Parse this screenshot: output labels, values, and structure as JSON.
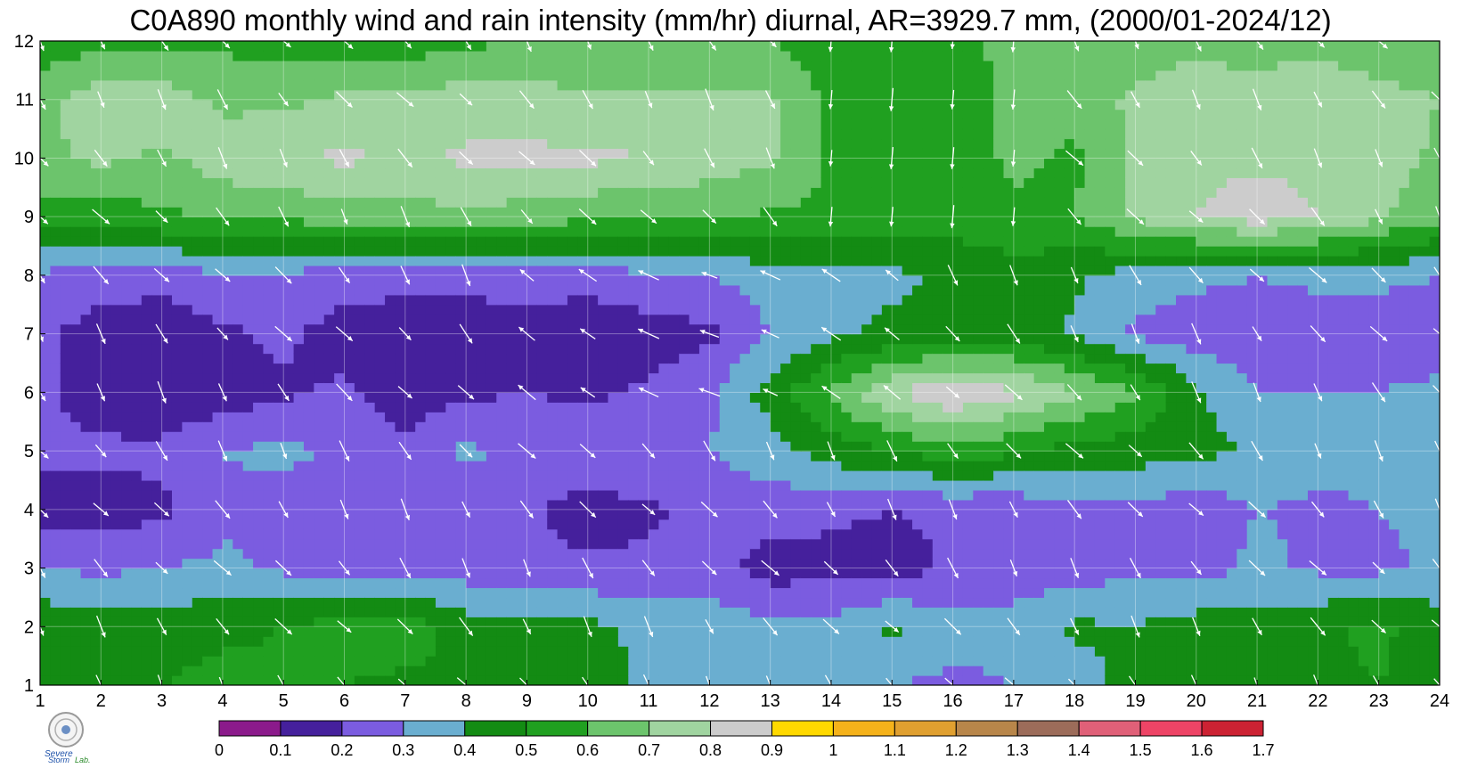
{
  "title": "C0A890 monthly wind and rain intensity (mm/hr) diurnal, AR=3929.7 mm, (2000/01-2024/12)",
  "logo": {
    "text": "Severe Storm Lab.",
    "icon": "severe-storm-lab-seal"
  },
  "chart_data": {
    "type": "contour",
    "title": "C0A890 monthly wind and rain intensity (mm/hr) diurnal, AR=3929.7 mm, (2000/01-2024/12)",
    "xlabel": "",
    "ylabel": "",
    "x_ticks": [
      1,
      2,
      3,
      4,
      5,
      6,
      7,
      8,
      9,
      10,
      11,
      12,
      13,
      14,
      15,
      16,
      17,
      18,
      19,
      20,
      21,
      22,
      23,
      24
    ],
    "y_ticks": [
      1,
      2,
      3,
      4,
      5,
      6,
      7,
      8,
      9,
      10,
      11,
      12
    ],
    "xlim": [
      1,
      24
    ],
    "ylim": [
      1,
      12
    ],
    "grid": true,
    "colorbar": {
      "labels": [
        "0",
        "0.1",
        "0.2",
        "0.3",
        "0.4",
        "0.5",
        "0.6",
        "0.7",
        "0.8",
        "0.9",
        "1",
        "1.1",
        "1.2",
        "1.3",
        "1.4",
        "1.5",
        "1.6",
        "1.7"
      ],
      "colors": [
        "#8b1a8b",
        "#45209c",
        "#7b5ce0",
        "#6aaed0",
        "#138b13",
        "#20a020",
        "#6cc46c",
        "#a0d4a0",
        "#cccccc",
        "#ffd900",
        "#f5b21a",
        "#e0a030",
        "#b8864a",
        "#9c6c5a",
        "#e06078",
        "#ee4466",
        "#cc2233"
      ]
    },
    "series": [
      {
        "x": [
          1,
          2,
          3,
          4,
          5,
          6,
          7,
          8,
          9,
          10,
          11,
          12,
          13,
          14,
          15,
          16,
          17,
          18,
          19,
          20,
          21,
          22,
          23,
          24
        ],
        "y": 1,
        "values": [
          0.5,
          0.48,
          0.5,
          0.53,
          0.52,
          0.5,
          0.48,
          0.5,
          0.48,
          0.45,
          0.38,
          0.33,
          0.32,
          0.31,
          0.3,
          0.28,
          0.3,
          0.35,
          0.45,
          0.48,
          0.47,
          0.48,
          0.5,
          0.45
        ]
      },
      {
        "x": [
          1,
          2,
          3,
          4,
          5,
          6,
          7,
          8,
          9,
          10,
          11,
          12,
          13,
          14,
          15,
          16,
          17,
          18,
          19,
          20,
          21,
          22,
          23,
          24
        ],
        "y": 2,
        "values": [
          0.48,
          0.45,
          0.45,
          0.48,
          0.5,
          0.55,
          0.55,
          0.45,
          0.45,
          0.42,
          0.38,
          0.35,
          0.33,
          0.33,
          0.42,
          0.33,
          0.33,
          0.42,
          0.4,
          0.45,
          0.45,
          0.48,
          0.52,
          0.45
        ]
      },
      {
        "x": [
          1,
          2,
          3,
          4,
          5,
          6,
          7,
          8,
          9,
          10,
          11,
          12,
          13,
          14,
          15,
          16,
          17,
          18,
          19,
          20,
          21,
          22,
          23,
          24
        ],
        "y": 3,
        "values": [
          0.3,
          0.28,
          0.3,
          0.32,
          0.28,
          0.25,
          0.25,
          0.25,
          0.22,
          0.22,
          0.22,
          0.25,
          0.15,
          0.17,
          0.15,
          0.22,
          0.25,
          0.25,
          0.28,
          0.25,
          0.33,
          0.28,
          0.28,
          0.32
        ]
      },
      {
        "x": [
          1,
          2,
          3,
          4,
          5,
          6,
          7,
          8,
          9,
          10,
          11,
          12,
          13,
          14,
          15,
          16,
          17,
          18,
          19,
          20,
          21,
          22,
          23,
          24
        ],
        "y": 4,
        "values": [
          0.15,
          0.15,
          0.18,
          0.28,
          0.25,
          0.22,
          0.22,
          0.25,
          0.22,
          0.15,
          0.18,
          0.25,
          0.25,
          0.22,
          0.2,
          0.22,
          0.22,
          0.28,
          0.28,
          0.22,
          0.3,
          0.28,
          0.3,
          0.32
        ]
      },
      {
        "x": [
          1,
          2,
          3,
          4,
          5,
          6,
          7,
          8,
          9,
          10,
          11,
          12,
          13,
          14,
          15,
          16,
          17,
          18,
          19,
          20,
          21,
          22,
          23,
          24
        ],
        "y": 5,
        "values": [
          0.22,
          0.22,
          0.22,
          0.3,
          0.33,
          0.28,
          0.22,
          0.32,
          0.28,
          0.3,
          0.3,
          0.3,
          0.35,
          0.45,
          0.5,
          0.55,
          0.52,
          0.45,
          0.45,
          0.42,
          0.4,
          0.33,
          0.33,
          0.32
        ]
      },
      {
        "x": [
          1,
          2,
          3,
          4,
          5,
          6,
          7,
          8,
          9,
          10,
          11,
          12,
          13,
          14,
          15,
          16,
          17,
          18,
          19,
          20,
          21,
          22,
          23,
          24
        ],
        "y": 6,
        "values": [
          0.22,
          0.15,
          0.12,
          0.15,
          0.18,
          0.22,
          0.15,
          0.18,
          0.2,
          0.18,
          0.22,
          0.28,
          0.45,
          0.62,
          0.8,
          0.9,
          0.82,
          0.72,
          0.62,
          0.42,
          0.3,
          0.3,
          0.3,
          0.32
        ]
      },
      {
        "x": [
          1,
          2,
          3,
          4,
          5,
          6,
          7,
          8,
          9,
          10,
          11,
          12,
          13,
          14,
          15,
          16,
          17,
          18,
          19,
          20,
          21,
          22,
          23,
          24
        ],
        "y": 7,
        "values": [
          0.22,
          0.15,
          0.12,
          0.18,
          0.22,
          0.15,
          0.12,
          0.12,
          0.15,
          0.12,
          0.15,
          0.18,
          0.3,
          0.38,
          0.42,
          0.42,
          0.45,
          0.38,
          0.28,
          0.25,
          0.25,
          0.25,
          0.25,
          0.25
        ]
      },
      {
        "x": [
          1,
          2,
          3,
          4,
          5,
          6,
          7,
          8,
          9,
          10,
          11,
          12,
          13,
          14,
          15,
          16,
          17,
          18,
          19,
          20,
          21,
          22,
          23,
          24
        ],
        "y": 8,
        "values": [
          0.28,
          0.25,
          0.25,
          0.28,
          0.28,
          0.25,
          0.25,
          0.25,
          0.25,
          0.25,
          0.28,
          0.3,
          0.35,
          0.38,
          0.38,
          0.42,
          0.45,
          0.42,
          0.35,
          0.32,
          0.3,
          0.32,
          0.32,
          0.3
        ]
      },
      {
        "x": [
          1,
          2,
          3,
          4,
          5,
          6,
          7,
          8,
          9,
          10,
          11,
          12,
          13,
          14,
          15,
          16,
          17,
          18,
          19,
          20,
          21,
          22,
          23,
          24
        ],
        "y": 9,
        "values": [
          0.55,
          0.55,
          0.58,
          0.62,
          0.62,
          0.65,
          0.65,
          0.68,
          0.65,
          0.62,
          0.6,
          0.62,
          0.58,
          0.58,
          0.55,
          0.55,
          0.58,
          0.6,
          0.72,
          0.8,
          0.85,
          0.8,
          0.72,
          0.62
        ]
      },
      {
        "x": [
          1,
          2,
          3,
          4,
          5,
          6,
          7,
          8,
          9,
          10,
          11,
          12,
          13,
          14,
          15,
          16,
          17,
          18,
          19,
          20,
          21,
          22,
          23,
          24
        ],
        "y": 10,
        "values": [
          0.68,
          0.72,
          0.68,
          0.75,
          0.78,
          0.82,
          0.78,
          0.82,
          0.82,
          0.82,
          0.8,
          0.75,
          0.72,
          0.58,
          0.52,
          0.55,
          0.62,
          0.58,
          0.72,
          0.78,
          0.78,
          0.78,
          0.75,
          0.68
        ]
      },
      {
        "x": [
          1,
          2,
          3,
          4,
          5,
          6,
          7,
          8,
          9,
          10,
          11,
          12,
          13,
          14,
          15,
          16,
          17,
          18,
          19,
          20,
          21,
          22,
          23,
          24
        ],
        "y": 11,
        "values": [
          0.68,
          0.75,
          0.75,
          0.68,
          0.68,
          0.72,
          0.72,
          0.75,
          0.75,
          0.72,
          0.72,
          0.72,
          0.72,
          0.58,
          0.55,
          0.55,
          0.62,
          0.65,
          0.72,
          0.75,
          0.75,
          0.8,
          0.75,
          0.7
        ]
      },
      {
        "x": [
          1,
          2,
          3,
          4,
          5,
          6,
          7,
          8,
          9,
          10,
          11,
          12,
          13,
          14,
          15,
          16,
          17,
          18,
          19,
          20,
          21,
          22,
          23,
          24
        ],
        "y": 12,
        "values": [
          0.52,
          0.58,
          0.58,
          0.58,
          0.55,
          0.55,
          0.55,
          0.58,
          0.6,
          0.6,
          0.6,
          0.62,
          0.6,
          0.52,
          0.55,
          0.58,
          0.62,
          0.62,
          0.65,
          0.68,
          0.65,
          0.65,
          0.62,
          0.6
        ]
      }
    ],
    "wind_vectors": "unit-direction arrows drawn at every integer (x, y) grid node"
  }
}
